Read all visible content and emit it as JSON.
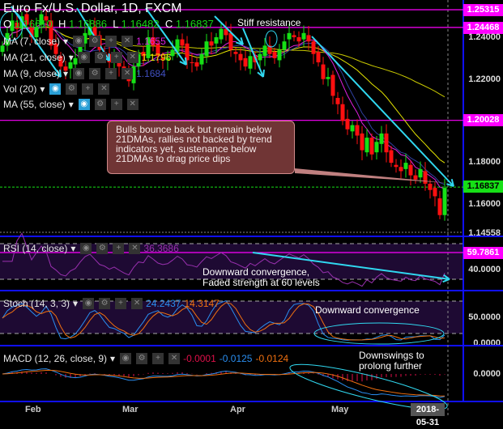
{
  "header": {
    "title": "Euro Fx/U.S. Dollar, 1D, FXCM",
    "ohlc": {
      "o_label": "O",
      "o": "1.16610",
      "h_label": "H",
      "h": "1.16886",
      "l_label": "L",
      "l": "1.16482",
      "c_label": "C",
      "c": "1.16837"
    }
  },
  "indicators": [
    {
      "label": "MA (7, close)",
      "value": "1.1655",
      "color": "#e020e0"
    },
    {
      "label": "MA (21, close)",
      "value": "1.1796",
      "color": "#e6e600"
    },
    {
      "label": "MA (9, close)",
      "value": "1.1684",
      "color": "#3040a0"
    },
    {
      "label": "Vol (20)",
      "value": ""
    },
    {
      "label": "MA (55, close)",
      "value": ""
    }
  ],
  "annotations": {
    "stiff_resistance": "Stiff resistance",
    "callout": "Bulls bounce back but remain below 21DMAs, rallies not backed by trend indicators yet, sustenance below 21DMAs to drag price dips",
    "rsi_note_1": "Downward convergence,",
    "rsi_note_2": "Faded strength at 60 levels",
    "stoch_note": "Downward convergence",
    "macd_note_1": "Downswings to",
    "macd_note_2": "prolong further"
  },
  "price_axis": {
    "ticks": [
      "1.24000",
      "1.22000",
      "1.18000",
      "1.16000"
    ],
    "levels": [
      "1.25315",
      "1.24468",
      "1.20028"
    ],
    "current": "1.16837",
    "bottom": "1.14558"
  },
  "rsi": {
    "label": "RSI (14, close)",
    "value": "36.3686",
    "level": "59.7861",
    "tick": "40.0000"
  },
  "stoch": {
    "label": "Stoch (14, 3, 3)",
    "k": "24.2437",
    "d": "14.3147",
    "ticks": [
      "50.0000",
      "0.0000"
    ]
  },
  "macd": {
    "label": "MACD (12, 26, close, 9)",
    "hist": "-0.0001",
    "macd": "-0.0125",
    "signal": "-0.0124",
    "tick": "0.0000"
  },
  "time_axis": {
    "ticks": [
      "Feb",
      "Mar",
      "Apr",
      "May"
    ],
    "current_date": "2018-05-31"
  },
  "colors": {
    "up": "#16e016",
    "down": "#ff1010",
    "level": "#ff00ff",
    "arrow": "#30d8f0",
    "panel_border": "#1010ff",
    "band": "#1e0a33"
  },
  "chart_data": {
    "type": "candlestick",
    "title": "Euro Fx/U.S. Dollar, 1D, FXCM",
    "ylim": [
      1.14558,
      1.25315
    ],
    "x_ticks": [
      "Feb",
      "Mar",
      "Apr",
      "May"
    ],
    "close": [
      1.236,
      1.242,
      1.248,
      1.244,
      1.25,
      1.246,
      1.24,
      1.245,
      1.251,
      1.248,
      1.236,
      1.232,
      1.226,
      1.224,
      1.228,
      1.23,
      1.236,
      1.242,
      1.245,
      1.24,
      1.234,
      1.232,
      1.228,
      1.23,
      1.226,
      1.222,
      1.219,
      1.226,
      1.232,
      1.231,
      1.24,
      1.236,
      1.231,
      1.229,
      1.23,
      1.234,
      1.239,
      1.236,
      1.229,
      1.228,
      1.226,
      1.232,
      1.238,
      1.236,
      1.24,
      1.244,
      1.241,
      1.234,
      1.232,
      1.229,
      1.226,
      1.231,
      1.228,
      1.232,
      1.236,
      1.232,
      1.23,
      1.234,
      1.238,
      1.242,
      1.24,
      1.238,
      1.242,
      1.238,
      1.232,
      1.228,
      1.22,
      1.221,
      1.212,
      1.208,
      1.2,
      1.196,
      1.198,
      1.193,
      1.186,
      1.192,
      1.184,
      1.19,
      1.194,
      1.185,
      1.18,
      1.178,
      1.176,
      1.18,
      1.174,
      1.172,
      1.177,
      1.17,
      1.167,
      1.164,
      1.155,
      1.168
    ]
  }
}
